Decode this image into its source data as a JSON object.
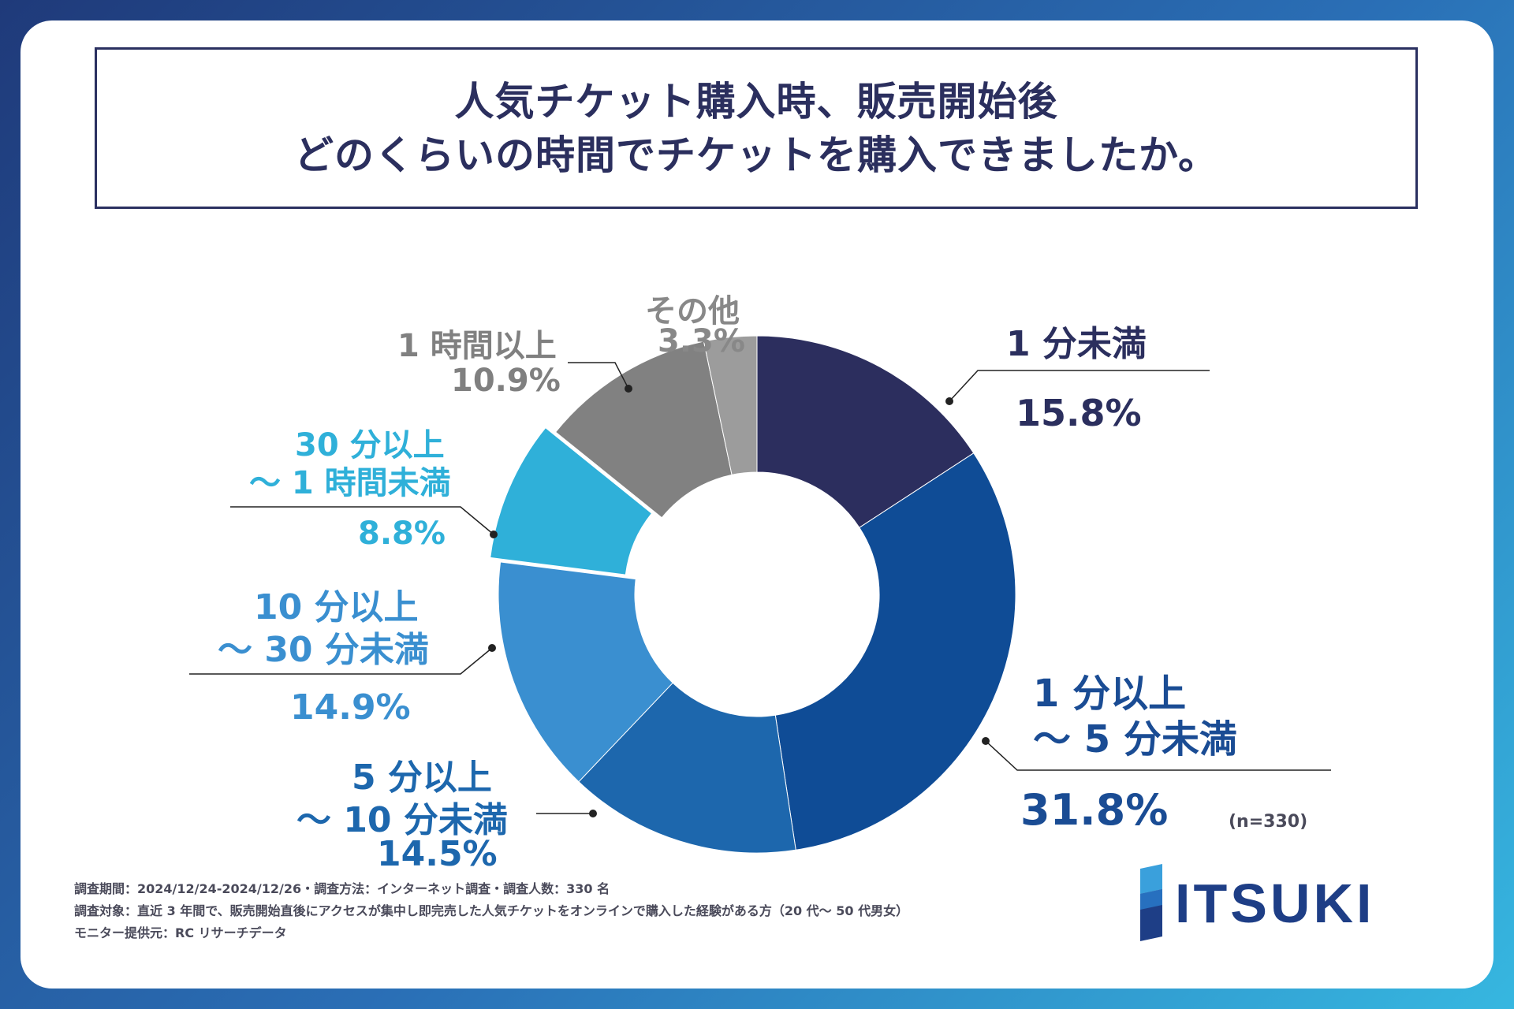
{
  "title": {
    "line1": "人気チケット購入時、販売開始後",
    "line2": "どのくらいの時間でチケットを購入できましたか。"
  },
  "chart_data": {
    "type": "pie",
    "variant": "donut",
    "start_angle_deg": 0,
    "direction": "clockwise",
    "slices": [
      {
        "label": "1 分未満",
        "value": 15.8,
        "pct_text": "15.8%",
        "color": "#2c2e5e",
        "text_color": "#2b2f5e"
      },
      {
        "label": "1 分以上\n～ 5 分未満",
        "value": 31.8,
        "pct_text": "31.8%",
        "color": "#0f4c96",
        "text_color": "#1a4c94"
      },
      {
        "label": "5 分以上\n～ 10 分未満",
        "value": 14.5,
        "pct_text": "14.5%",
        "color": "#1d67ad",
        "text_color": "#1d67ad"
      },
      {
        "label": "10 分以上\n～ 30 分未満",
        "value": 14.9,
        "pct_text": "14.9%",
        "color": "#3a8fd0",
        "text_color": "#3a8fd0"
      },
      {
        "label": "30 分以上\n～ 1 時間未満",
        "value": 8.8,
        "pct_text": "8.8%",
        "color": "#2fb0d9",
        "text_color": "#2fb0d9"
      },
      {
        "label": "1 時間以上",
        "value": 10.9,
        "pct_text": "10.9%",
        "color": "#818181",
        "text_color": "#808080"
      },
      {
        "label": "その他",
        "value": 3.3,
        "pct_text": "3.3%",
        "color": "#9c9c9c",
        "text_color": "#888888"
      }
    ]
  },
  "labels": {
    "s0": {
      "name": "1 分未満",
      "pct": "15.8%"
    },
    "s1": {
      "line1": "1 分以上",
      "line2": "～ 5 分未満",
      "pct": "31.8%"
    },
    "s2": {
      "line1": "5 分以上",
      "line2": "～ 10 分未満",
      "pct": "14.5%"
    },
    "s3": {
      "line1": "10 分以上",
      "line2": "～ 30 分未満",
      "pct": "14.9%"
    },
    "s4": {
      "line1": "30 分以上",
      "line2": "～ 1 時間未満",
      "pct": "8.8%"
    },
    "s5": {
      "name": "1 時間以上",
      "pct": "10.9%"
    },
    "s6": {
      "name": "その他",
      "pct": "3.3%"
    }
  },
  "sample_note": "(n=330)",
  "footnotes": [
    "調査期間：2024/12/24-2024/12/26・調査方法：インターネット調査・調査人数：330 名",
    "調査対象：直近 3 年間で、販売開始直後にアクセスが集中し即完売した人気チケットをオンラインで購入した経験がある方（20 代～ 50 代男女）",
    "モニター提供元：RC リサーチデータ"
  ],
  "logo_text": "ITSUKI"
}
